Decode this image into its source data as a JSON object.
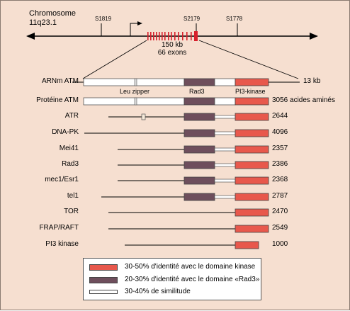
{
  "chromosome": {
    "title_line1": "Chromosome",
    "title_line2": "11q23.1",
    "markers": [
      "S1819",
      "S2179",
      "S1778"
    ],
    "gene_size_kb": "150 kb",
    "exon_count": "66 exons"
  },
  "rows": [
    {
      "label": "ARNm  ATM",
      "value": "13 kb"
    },
    {
      "label": "Protéine  ATM",
      "value": "3056 acides aminés"
    },
    {
      "label": "ATR",
      "value": "2644"
    },
    {
      "label": "DNA-PK",
      "value": "4096"
    },
    {
      "label": "Mei41",
      "value": "2357"
    },
    {
      "label": "Rad3",
      "value": "2386"
    },
    {
      "label": "mec1/Esr1",
      "value": "2368"
    },
    {
      "label": "tel1",
      "value": "2787"
    },
    {
      "label": "TOR",
      "value": "2470"
    },
    {
      "label": "FRAP/RAFT",
      "value": "2549"
    },
    {
      "label": "PI3 kinase",
      "value": "1000"
    }
  ],
  "domains": {
    "leu_zipper": "Leu zipper",
    "rad3": "Rad3",
    "pi3k": "PI3-kinase"
  },
  "legend": [
    {
      "text": "30-50% d'identité avec le domaine kinase",
      "color": "#e8584c"
    },
    {
      "text": "20-30% d'identité avec le domaine «Rad3»",
      "color": "#6e4e5c"
    },
    {
      "text": "30-40% de similitude",
      "color": "#ffffff"
    }
  ],
  "colors": {
    "kinase": "#e8584c",
    "rad3": "#6e4e5c",
    "similarity": "#ffffff",
    "exon": "#d8202c",
    "background": "#f6dfd0"
  }
}
